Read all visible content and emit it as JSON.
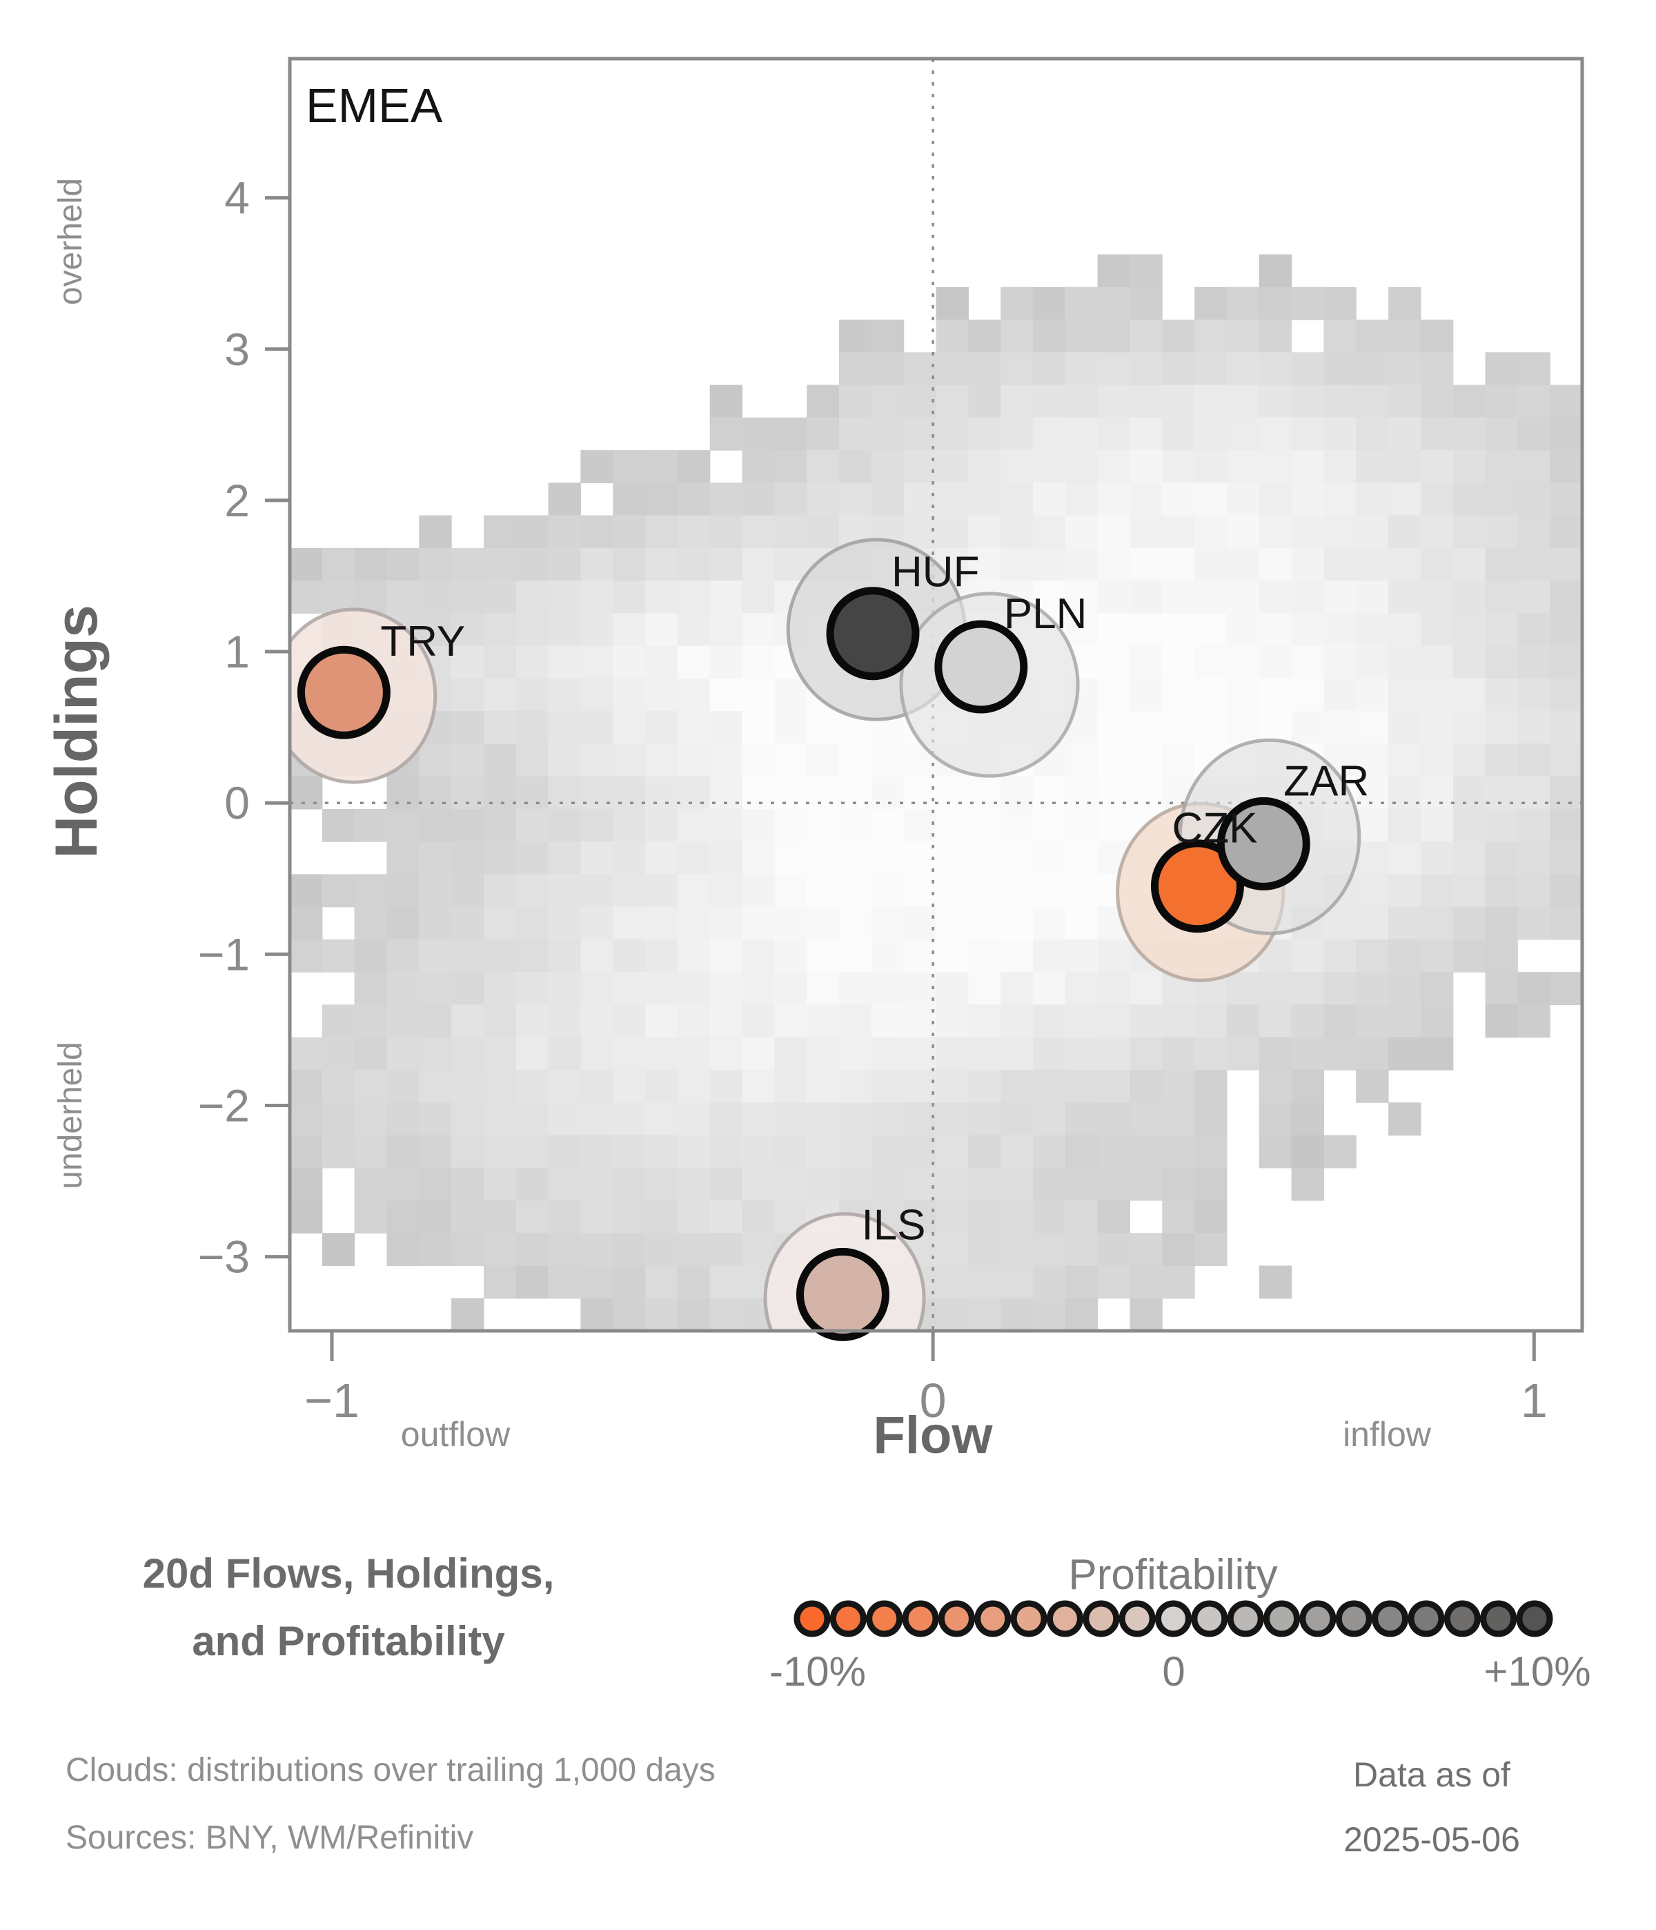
{
  "region_label": "EMEA",
  "panel_title": {
    "line1": "20d Flows, Holdings,",
    "line2": "and Profitability"
  },
  "axes": {
    "x": {
      "label": "Flow",
      "annotation_left": "outflow",
      "annotation_right": "inflow",
      "range": [
        -1.07,
        1.08
      ],
      "ticks": [
        {
          "v": -1,
          "label": "−1"
        },
        {
          "v": 0,
          "label": "0"
        },
        {
          "v": 1,
          "label": "1"
        }
      ]
    },
    "y": {
      "label": "Holdings",
      "annotation_top": "overheld",
      "annotation_bottom": "underheld",
      "range": [
        -3.49,
        4.92
      ],
      "ticks": [
        {
          "v": 4,
          "label": "4"
        },
        {
          "v": 3,
          "label": "3"
        },
        {
          "v": 2,
          "label": "2"
        },
        {
          "v": 1,
          "label": "1"
        },
        {
          "v": 0,
          "label": "0"
        },
        {
          "v": -1,
          "label": "−1"
        },
        {
          "v": -2,
          "label": "−2"
        },
        {
          "v": -3,
          "label": "−3"
        }
      ]
    }
  },
  "legend": {
    "title": "Profitability",
    "labels": {
      "min": "-10%",
      "mid": "0",
      "max": "+10%"
    },
    "n_circles": 21,
    "colors": {
      "negative": "#fa6a2d",
      "neutral": "#d5d1ce",
      "positive": "#545454"
    }
  },
  "footnotes": {
    "clouds": "Clouds:  distributions over trailing 1,000 days",
    "sources": "Sources:  BNY, WM/Refinitiv",
    "data_as_of_line1": "Data as of",
    "data_as_of_line2": "2025-05-06"
  },
  "chart_data": {
    "type": "scatter",
    "title": "20d Flows, Holdings, and Profitability — EMEA",
    "xlabel": "Flow",
    "ylabel": "Holdings",
    "xlim": [
      -1.07,
      1.08
    ],
    "ylim": [
      -3.49,
      4.92
    ],
    "points": [
      {
        "label": "TRY",
        "x": -0.98,
        "y": 0.73,
        "color": "#e09477",
        "label_offset": [
          53,
          -53
        ],
        "cloud": {
          "cx": -0.964,
          "cy": 0.708,
          "rx": 0.136,
          "ry": 0.571,
          "fill": "#f3e4de",
          "fill_opacity": 0.9,
          "stroke": "#ada5a2"
        }
      },
      {
        "label": "HUF",
        "x": -0.1,
        "y": 1.12,
        "color": "#454545",
        "label_offset": [
          27,
          -68
        ],
        "cloud": {
          "cx": -0.094,
          "cy": 1.146,
          "rx": 0.147,
          "ry": 0.594,
          "fill": "#d8d8d8",
          "fill_opacity": 0.8,
          "stroke": "#9f9f9f"
        }
      },
      {
        "label": "PLN",
        "x": 0.08,
        "y": 0.9,
        "color": "#d2d3d2",
        "label_offset": [
          33,
          -56
        ],
        "cloud": {
          "cx": 0.094,
          "cy": 0.781,
          "rx": 0.147,
          "ry": 0.603,
          "fill": "#e3e3e3",
          "fill_opacity": 0.65,
          "stroke": "#a8a8a8"
        }
      },
      {
        "label": "CZK",
        "x": 0.44,
        "y": -0.55,
        "color": "#f4702f",
        "label_offset": [
          -37,
          -63
        ],
        "cloud": {
          "cx": 0.445,
          "cy": -0.589,
          "rx": 0.138,
          "ry": 0.584,
          "fill": "#f3ddcf",
          "fill_opacity": 0.85,
          "stroke": "#b4a79e"
        }
      },
      {
        "label": "ZAR",
        "x": 0.55,
        "y": -0.27,
        "color": "#ababab",
        "label_offset": [
          29,
          -70
        ],
        "cloud": {
          "cx": 0.56,
          "cy": -0.224,
          "rx": 0.149,
          "ry": 0.639,
          "fill": "#dedede",
          "fill_opacity": 0.6,
          "stroke": "#a5a5a5"
        }
      },
      {
        "label": "ILS",
        "x": -0.15,
        "y": -3.25,
        "color": "#d4b4a8",
        "label_offset": [
          27,
          -80
        ],
        "cloud": {
          "cx": -0.147,
          "cy": -3.274,
          "rx": 0.132,
          "ry": 0.557,
          "fill": "#f2eae8",
          "fill_opacity": 0.9,
          "stroke": "#aaa3a1"
        }
      }
    ],
    "density_cloud": {
      "note": "trailing 1,000 day flow/holdings 2D histogram, light=dense",
      "seed": 7,
      "grid": [
        40,
        39
      ],
      "threshold": 0.16,
      "components": [
        {
          "cx": 0.1,
          "cy": 0.0,
          "sx": 0.5,
          "sy": 1.15,
          "w": 1.0
        },
        {
          "cx": 0.4,
          "cy": 2.3,
          "sx": 0.42,
          "sy": 0.7,
          "w": 0.55
        },
        {
          "cx": -0.55,
          "cy": 1.05,
          "sx": 0.45,
          "sy": 0.5,
          "w": 0.4
        },
        {
          "cx": -0.45,
          "cy": -1.8,
          "sx": 0.5,
          "sy": 0.85,
          "w": 0.5
        },
        {
          "cx": -0.05,
          "cy": -3.15,
          "sx": 0.4,
          "sy": 0.45,
          "w": 0.32
        },
        {
          "cx": 0.75,
          "cy": 0.6,
          "sx": 0.35,
          "sy": 1.1,
          "w": 0.4
        }
      ]
    }
  }
}
